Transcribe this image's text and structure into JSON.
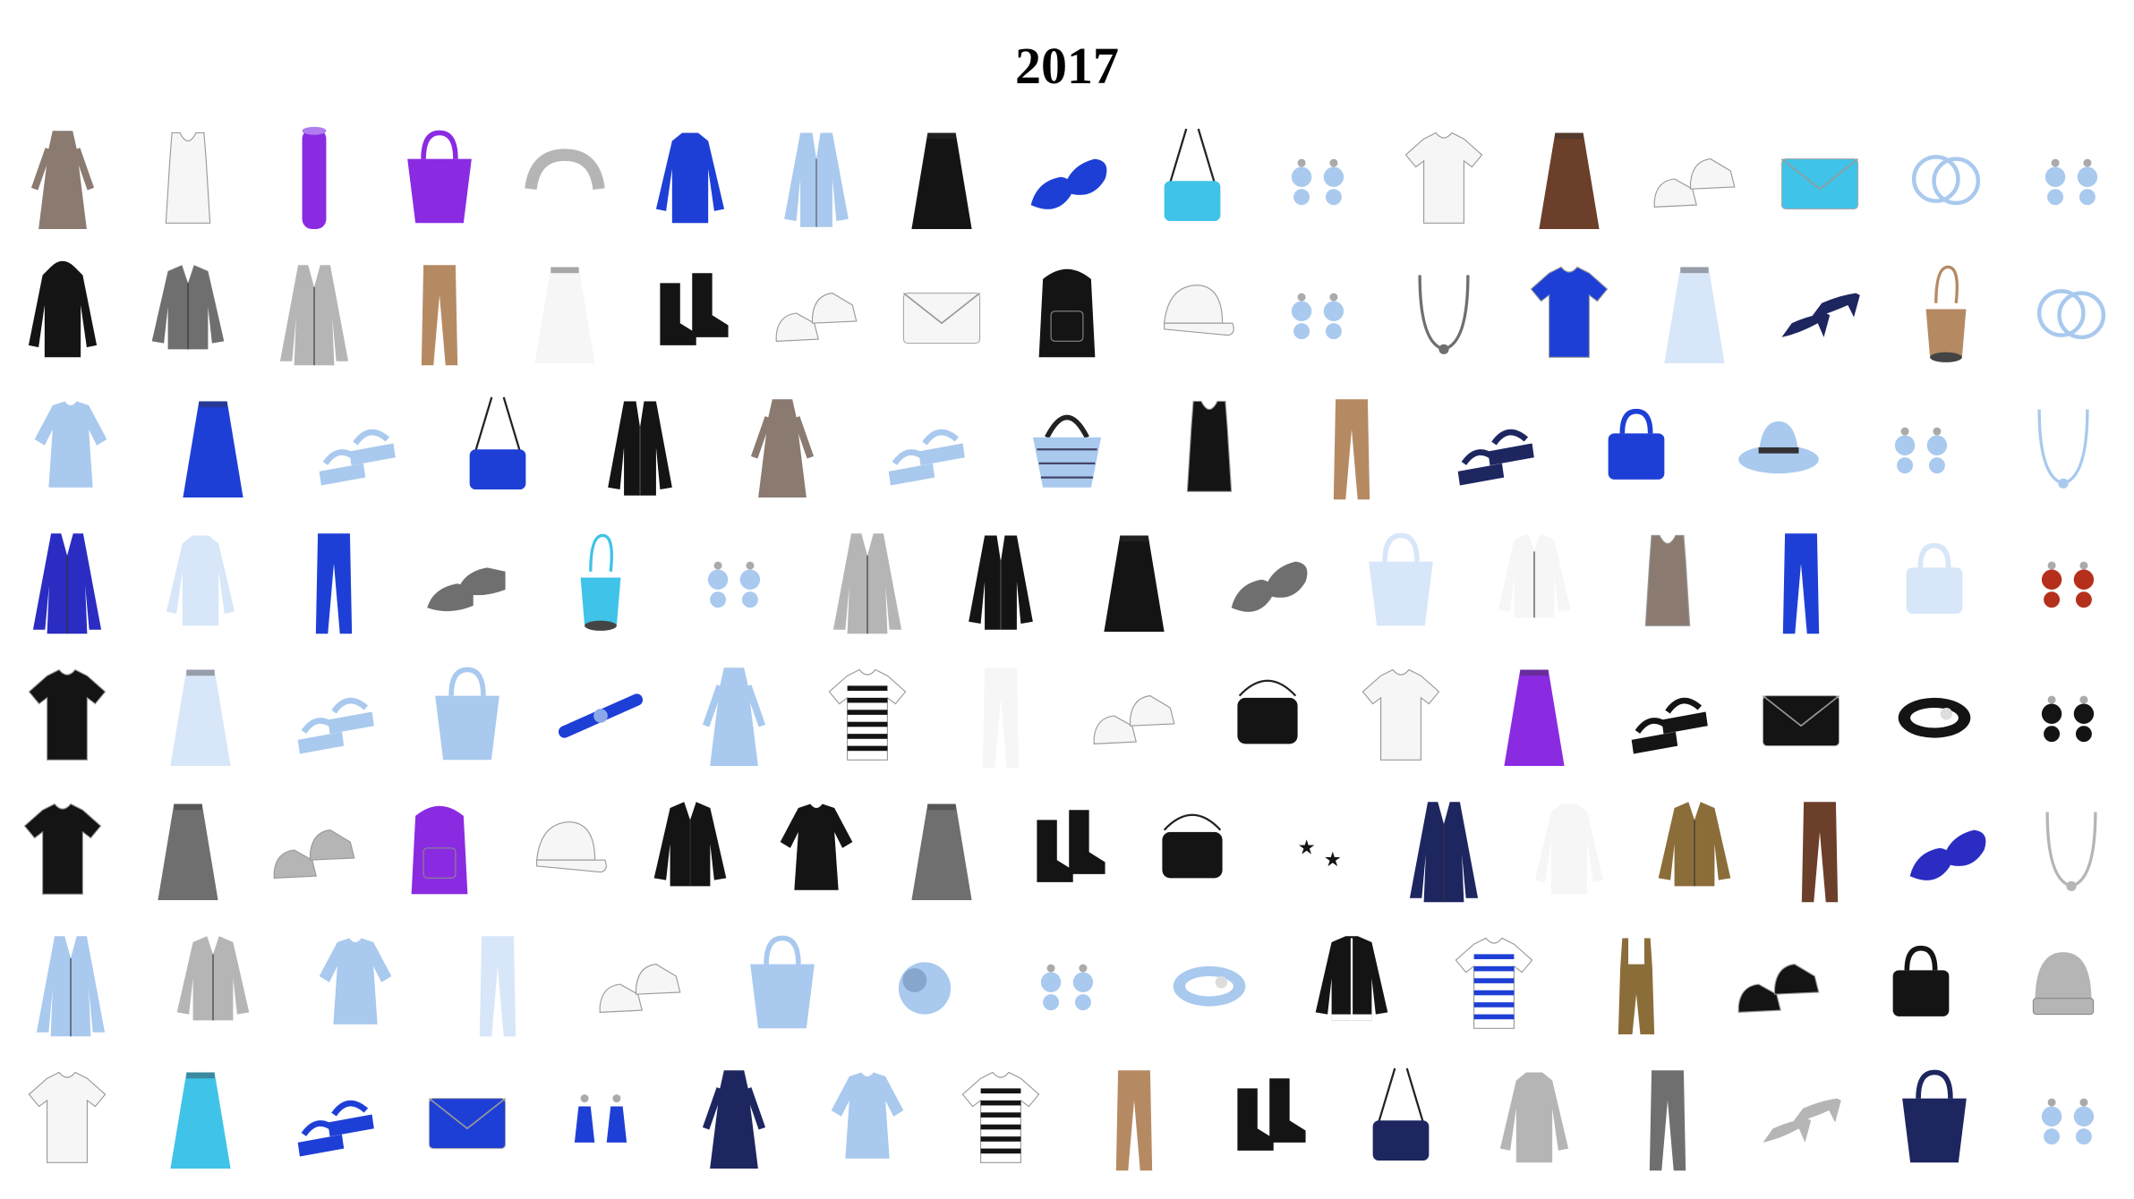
{
  "title": "2017",
  "palette": {
    "blue": "#1e3fd6",
    "royal": "#2a2cc2",
    "sky": "#a9c9ee",
    "light": "#d7e6f8",
    "navy": "#1e2660",
    "black": "#141414",
    "grey": "#b5b5b5",
    "darkgrey": "#6f6f6f",
    "brown": "#6b3f2a",
    "tan": "#b58a63",
    "white": "#f6f6f6",
    "purple": "#8a2be2",
    "teal": "#40c3e8",
    "mauve": "#8a7a70",
    "khaki": "#8b6d3a",
    "red": "#b5301c"
  },
  "rows": [
    [
      {
        "icon": "dress-icon",
        "color": "mauve"
      },
      {
        "icon": "tank-top-icon",
        "color": "white"
      },
      {
        "icon": "yoga-mat-icon",
        "color": "purple"
      },
      {
        "icon": "tote-bag-icon",
        "color": "purple"
      },
      {
        "icon": "headband-icon",
        "color": "grey"
      },
      {
        "icon": "sweater-icon",
        "color": "blue"
      },
      {
        "icon": "cardigan-icon",
        "color": "sky"
      },
      {
        "icon": "skirt-icon",
        "color": "black"
      },
      {
        "icon": "flats-icon",
        "color": "blue"
      },
      {
        "icon": "shoulder-bag-icon",
        "color": "teal"
      },
      {
        "icon": "earrings-icon",
        "color": "sky"
      },
      {
        "icon": "tshirt-icon",
        "color": "white"
      },
      {
        "icon": "skirt-icon",
        "color": "brown"
      },
      {
        "icon": "sneakers-icon",
        "color": "white"
      },
      {
        "icon": "clutch-icon",
        "color": "teal"
      },
      {
        "icon": "bangles-icon",
        "color": "sky"
      },
      {
        "icon": "earrings-icon",
        "color": "sky"
      }
    ],
    [
      {
        "icon": "hoodie-icon",
        "color": "black"
      },
      {
        "icon": "jacket-icon",
        "color": "darkgrey"
      },
      {
        "icon": "coat-icon",
        "color": "grey"
      },
      {
        "icon": "pants-icon",
        "color": "tan"
      },
      {
        "icon": "skirt-icon",
        "color": "white"
      },
      {
        "icon": "boots-icon",
        "color": "black"
      },
      {
        "icon": "sneakers-icon",
        "color": "white"
      },
      {
        "icon": "clutch-icon",
        "color": "white"
      },
      {
        "icon": "backpack-icon",
        "color": "black"
      },
      {
        "icon": "cap-icon",
        "color": "white"
      },
      {
        "icon": "earrings-icon",
        "color": "sky"
      },
      {
        "icon": "necklace-icon",
        "color": "darkgrey"
      },
      {
        "icon": "tshirt-icon",
        "color": "blue"
      },
      {
        "icon": "skirt-icon",
        "color": "light"
      },
      {
        "icon": "pumps-icon",
        "color": "navy"
      },
      {
        "icon": "bucket-bag-icon",
        "color": "tan"
      },
      {
        "icon": "bangles-icon",
        "color": "sky"
      }
    ],
    [
      {
        "icon": "blouse-icon",
        "color": "sky"
      },
      {
        "icon": "skirt-icon",
        "color": "blue"
      },
      {
        "icon": "sandals-icon",
        "color": "sky"
      },
      {
        "icon": "shoulder-bag-icon",
        "color": "blue"
      },
      {
        "icon": "cardigan-icon",
        "color": "black"
      },
      {
        "icon": "dress-icon",
        "color": "mauve"
      },
      {
        "icon": "sandals-icon",
        "color": "sky"
      },
      {
        "icon": "basket-bag-icon",
        "color": "sky"
      },
      {
        "icon": "tank-top-icon",
        "color": "black"
      },
      {
        "icon": "pants-icon",
        "color": "tan"
      },
      {
        "icon": "sandals-icon",
        "color": "navy"
      },
      {
        "icon": "handbag-icon",
        "color": "blue"
      },
      {
        "icon": "hat-icon",
        "color": "sky"
      },
      {
        "icon": "earrings-icon",
        "color": "sky"
      },
      {
        "icon": "necklace-icon",
        "color": "sky"
      }
    ],
    [
      {
        "icon": "coat-icon",
        "color": "royal"
      },
      {
        "icon": "sweater-icon",
        "color": "light"
      },
      {
        "icon": "pants-icon",
        "color": "blue"
      },
      {
        "icon": "loafers-icon",
        "color": "darkgrey"
      },
      {
        "icon": "bucket-bag-icon",
        "color": "teal"
      },
      {
        "icon": "earrings-icon",
        "color": "sky"
      },
      {
        "icon": "coat-icon",
        "color": "grey"
      },
      {
        "icon": "cardigan-icon",
        "color": "black"
      },
      {
        "icon": "skirt-icon",
        "color": "black"
      },
      {
        "icon": "flats-icon",
        "color": "darkgrey"
      },
      {
        "icon": "tote-bag-icon",
        "color": "light"
      },
      {
        "icon": "jacket-icon",
        "color": "white"
      },
      {
        "icon": "tank-top-icon",
        "color": "mauve"
      },
      {
        "icon": "pants-icon",
        "color": "blue"
      },
      {
        "icon": "handbag-icon",
        "color": "light"
      },
      {
        "icon": "earrings-icon",
        "color": "red"
      }
    ],
    [
      {
        "icon": "tshirt-icon",
        "color": "black"
      },
      {
        "icon": "skirt-icon",
        "color": "light"
      },
      {
        "icon": "sandals-icon",
        "color": "sky"
      },
      {
        "icon": "tote-bag-icon",
        "color": "sky"
      },
      {
        "icon": "hair-clip-icon",
        "color": "blue"
      },
      {
        "icon": "dress-icon",
        "color": "sky"
      },
      {
        "icon": "striped-top-icon",
        "color": "black"
      },
      {
        "icon": "pants-icon",
        "color": "white"
      },
      {
        "icon": "sneakers-icon",
        "color": "white"
      },
      {
        "icon": "camera-bag-icon",
        "color": "black"
      },
      {
        "icon": "tshirt-icon",
        "color": "white"
      },
      {
        "icon": "skirt-icon",
        "color": "purple"
      },
      {
        "icon": "sandals-icon",
        "color": "black"
      },
      {
        "icon": "clutch-icon",
        "color": "black"
      },
      {
        "icon": "cuff-bracelet-icon",
        "color": "black"
      },
      {
        "icon": "earrings-icon",
        "color": "black"
      }
    ],
    [
      {
        "icon": "tshirt-icon",
        "color": "black"
      },
      {
        "icon": "skirt-icon",
        "color": "darkgrey"
      },
      {
        "icon": "sneakers-icon",
        "color": "grey"
      },
      {
        "icon": "backpack-icon",
        "color": "purple"
      },
      {
        "icon": "cap-icon",
        "color": "white"
      },
      {
        "icon": "jacket-icon",
        "color": "black"
      },
      {
        "icon": "blouse-icon",
        "color": "black"
      },
      {
        "icon": "skirt-icon",
        "color": "darkgrey"
      },
      {
        "icon": "boots-icon",
        "color": "black"
      },
      {
        "icon": "camera-bag-icon",
        "color": "black"
      },
      {
        "icon": "star-earrings-icon",
        "color": "black"
      },
      {
        "icon": "coat-icon",
        "color": "navy"
      },
      {
        "icon": "sweater-icon",
        "color": "white"
      },
      {
        "icon": "jacket-icon",
        "color": "khaki"
      },
      {
        "icon": "pants-icon",
        "color": "brown"
      },
      {
        "icon": "flats-icon",
        "color": "royal"
      },
      {
        "icon": "necklace-icon",
        "color": "grey"
      }
    ],
    [
      {
        "icon": "coat-icon",
        "color": "sky"
      },
      {
        "icon": "jacket-icon",
        "color": "grey"
      },
      {
        "icon": "blouse-icon",
        "color": "sky"
      },
      {
        "icon": "pants-icon",
        "color": "light"
      },
      {
        "icon": "sneakers-icon",
        "color": "white"
      },
      {
        "icon": "tote-bag-icon",
        "color": "sky"
      },
      {
        "icon": "pompom-icon",
        "color": "sky"
      },
      {
        "icon": "earrings-icon",
        "color": "sky"
      },
      {
        "icon": "cuff-bracelet-icon",
        "color": "sky"
      },
      {
        "icon": "bomber-jacket-icon",
        "color": "black"
      },
      {
        "icon": "striped-top-icon",
        "color": "blue"
      },
      {
        "icon": "overalls-icon",
        "color": "khaki"
      },
      {
        "icon": "sneakers-icon",
        "color": "black"
      },
      {
        "icon": "handbag-icon",
        "color": "black"
      },
      {
        "icon": "beanie-icon",
        "color": "grey"
      }
    ],
    [
      {
        "icon": "tshirt-icon",
        "color": "white"
      },
      {
        "icon": "skirt-icon",
        "color": "teal"
      },
      {
        "icon": "sandals-icon",
        "color": "blue"
      },
      {
        "icon": "clutch-icon",
        "color": "blue"
      },
      {
        "icon": "tassel-earrings-icon",
        "color": "blue"
      },
      {
        "icon": "dress-icon",
        "color": "navy"
      },
      {
        "icon": "blouse-icon",
        "color": "sky"
      },
      {
        "icon": "striped-top-icon",
        "color": "black"
      },
      {
        "icon": "pants-icon",
        "color": "tan"
      },
      {
        "icon": "boots-icon",
        "color": "black"
      },
      {
        "icon": "shoulder-bag-icon",
        "color": "navy"
      },
      {
        "icon": "sweater-icon",
        "color": "grey"
      },
      {
        "icon": "pants-icon",
        "color": "darkgrey"
      },
      {
        "icon": "pumps-icon",
        "color": "grey"
      },
      {
        "icon": "tote-bag-icon",
        "color": "navy"
      },
      {
        "icon": "earrings-icon",
        "color": "sky"
      }
    ]
  ]
}
